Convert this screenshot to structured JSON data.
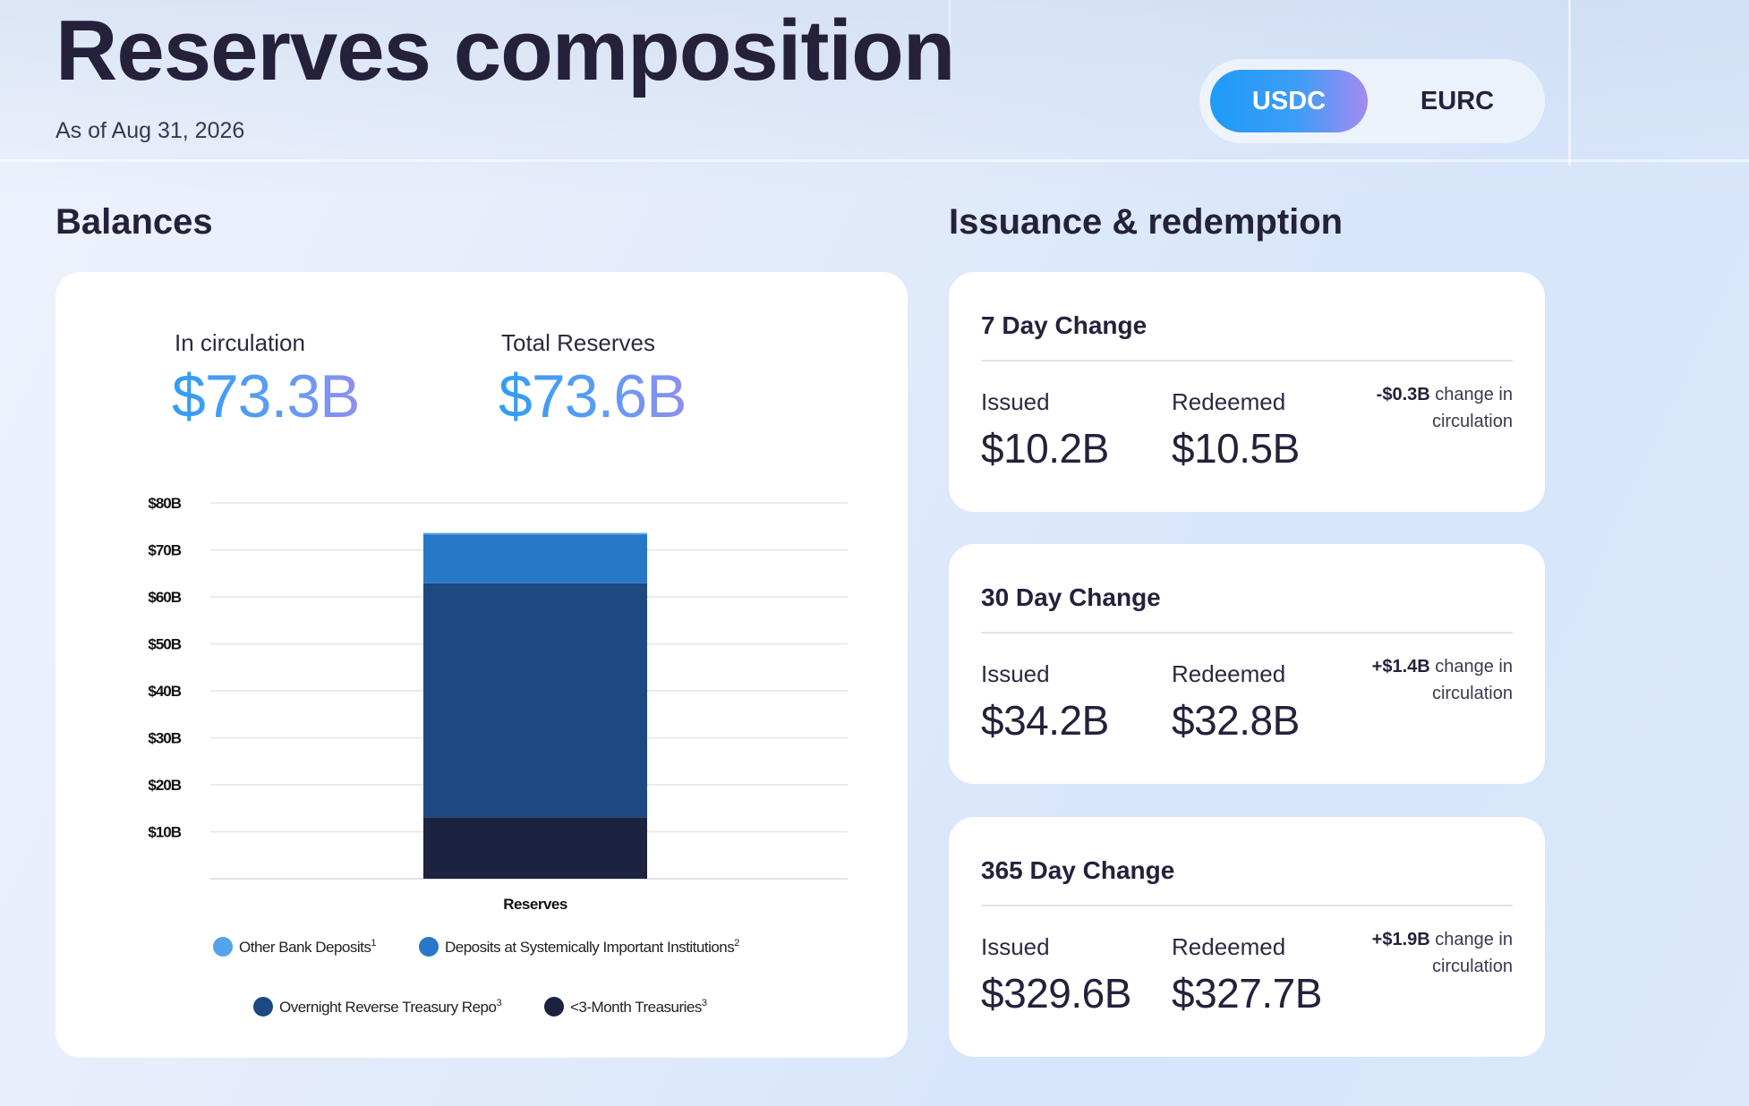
{
  "header": {
    "title": "Reserves composition",
    "as_of": "As of Aug 31, 2026"
  },
  "toggle": {
    "active": "USDC",
    "inactive": "EURC"
  },
  "balances": {
    "section_title": "Balances",
    "in_circulation_label": "In circulation",
    "in_circulation_value": "$73.3B",
    "total_reserves_label": "Total Reserves",
    "total_reserves_value": "$73.6B"
  },
  "chart_data": {
    "type": "bar",
    "stacked": true,
    "categories": [
      "Reserves"
    ],
    "ylim": [
      0,
      80
    ],
    "yticks": [
      0,
      10,
      20,
      30,
      40,
      50,
      60,
      70,
      80
    ],
    "ytick_labels": [
      "",
      "$10B",
      "$20B",
      "$30B",
      "$40B",
      "$50B",
      "$60B",
      "$70B",
      "$80B"
    ],
    "xlabel": "Reserves",
    "ylabel": "",
    "grid": true,
    "legend_position": "bottom",
    "series": [
      {
        "name": "<3-Month Treasuries",
        "sup": "3",
        "color": "#1c2340",
        "values": [
          13.1
        ]
      },
      {
        "name": "Overnight Reverse Treasury Repo",
        "sup": "3",
        "color": "#1c4981",
        "values": [
          49.8
        ]
      },
      {
        "name": "Deposits at Systemically Important Institutions",
        "sup": "2",
        "color": "#2878c8",
        "values": [
          10.4
        ]
      },
      {
        "name": "Other Bank Deposits",
        "sup": "1",
        "color": "#55a3ea",
        "values": [
          0.3
        ]
      }
    ],
    "legend_order": [
      3,
      2,
      1,
      0
    ]
  },
  "issuance": {
    "section_title": "Issuance & redemption",
    "cards": [
      {
        "title": "7 Day Change",
        "issued_label": "Issued",
        "issued_value": "$10.2B",
        "redeemed_label": "Redeemed",
        "redeemed_value": "$10.5B",
        "change_amount": "-$0.3B",
        "change_text": " change in circulation"
      },
      {
        "title": "30 Day Change",
        "issued_label": "Issued",
        "issued_value": "$34.2B",
        "redeemed_label": "Redeemed",
        "redeemed_value": "$32.8B",
        "change_amount": "+$1.4B",
        "change_text": " change in circulation"
      },
      {
        "title": "365 Day Change",
        "issued_label": "Issued",
        "issued_value": "$329.6B",
        "redeemed_label": "Redeemed",
        "redeemed_value": "$327.7B",
        "change_amount": "+$1.9B",
        "change_text": " change in circulation"
      }
    ]
  }
}
